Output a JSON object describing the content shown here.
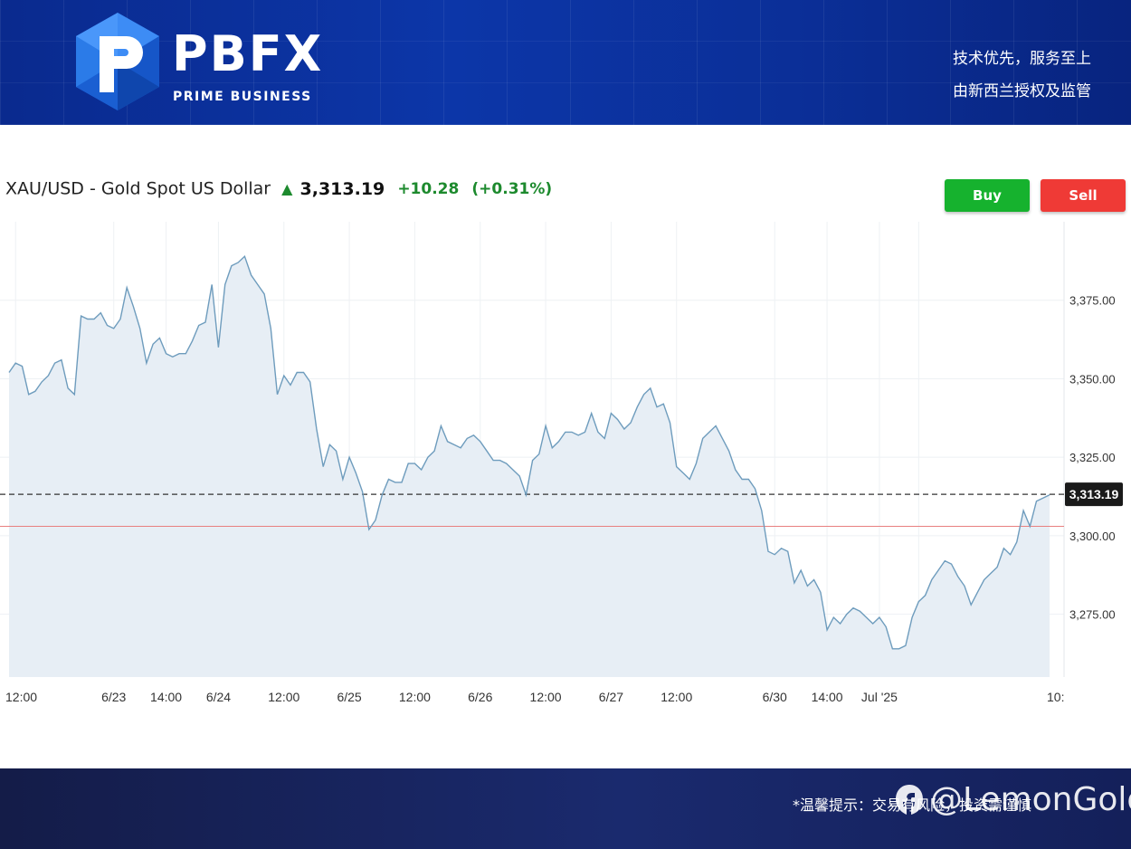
{
  "header": {
    "logo_text": "PBFX",
    "logo_subtitle": "PRIME BUSINESS",
    "tagline_1": "技术优先，服务至上",
    "tagline_2": "由新西兰授权及监管"
  },
  "instrument": {
    "title": "XAU/USD - Gold Spot US Dollar",
    "price": "3,313.19",
    "change": "+10.28",
    "change_pct": "(+0.31%)"
  },
  "buttons": {
    "buy": "Buy",
    "sell": "Sell"
  },
  "colors": {
    "buy": "#16b22e",
    "sell": "#ef3a36",
    "line": "#6e9cbd",
    "area": "#e7eef5",
    "prev_close": "#e88080",
    "up": "#1d8a2e"
  },
  "footer": {
    "note": "*温馨提示：交易有风险，投资需谨慎",
    "watermark": "@LemonGold"
  },
  "chart_data": {
    "type": "area",
    "title": "XAU/USD - Gold Spot US Dollar",
    "ylim": [
      3255,
      3400
    ],
    "y_ticks": [
      3275,
      3300,
      3325,
      3350,
      3375
    ],
    "y_tick_labels": [
      "3,275.00",
      "3,300.00",
      "3,325.00",
      "3,350.00",
      "3,375.00"
    ],
    "x_tick_labels": [
      "12:00",
      "6/23",
      "14:00",
      "6/24",
      "12:00",
      "6/25",
      "12:00",
      "6/26",
      "12:00",
      "6/27",
      "12:00",
      "6/30",
      "14:00",
      "Jul '25",
      "10:"
    ],
    "x_tick_positions": [
      1,
      16,
      24,
      32,
      42,
      52,
      62,
      72,
      82,
      92,
      102,
      117,
      125,
      133,
      139
    ],
    "current_price": 3313.19,
    "current_price_label": "3,313.19",
    "previous_close": 3303,
    "grid": true,
    "series": [
      {
        "values": [
          3352,
          3355,
          3354,
          3345,
          3346,
          3349,
          3351,
          3355,
          3356,
          3347,
          3345,
          3370,
          3369,
          3369,
          3371,
          3367,
          3366,
          3369,
          3379,
          3373,
          3366,
          3355,
          3361,
          3363,
          3358,
          3357,
          3358,
          3358,
          3362,
          3367,
          3368,
          3380,
          3360,
          3380,
          3386,
          3387,
          3389,
          3383,
          3380,
          3377,
          3366,
          3345,
          3351,
          3348,
          3352,
          3352,
          3349,
          3334,
          3322,
          3329,
          3327,
          3318,
          3325,
          3320,
          3314,
          3302,
          3305,
          3313,
          3318,
          3317,
          3317,
          3323,
          3323,
          3321,
          3325,
          3327,
          3335,
          3330,
          3329,
          3328,
          3331,
          3332,
          3330,
          3327,
          3324,
          3324,
          3323,
          3321,
          3319,
          3313,
          3324,
          3326,
          3335,
          3328,
          3330,
          3333,
          3333,
          3332,
          3333,
          3339,
          3333,
          3331,
          3339,
          3337,
          3334,
          3336,
          3341,
          3345,
          3347,
          3341,
          3342,
          3336,
          3322,
          3320,
          3318,
          3323,
          3331,
          3333,
          3335,
          3331,
          3327,
          3321,
          3318,
          3318,
          3315,
          3308,
          3295,
          3294,
          3296,
          3295,
          3285,
          3289,
          3284,
          3286,
          3282,
          3270,
          3274,
          3272,
          3275,
          3277,
          3276,
          3274,
          3272,
          3274,
          3271,
          3264,
          3264,
          3265,
          3274,
          3279,
          3281,
          3286,
          3289,
          3292,
          3291,
          3287,
          3284,
          3278,
          3282,
          3286,
          3288,
          3290,
          3296,
          3294,
          3298,
          3308,
          3303,
          3311,
          3312,
          3313
        ]
      }
    ]
  }
}
